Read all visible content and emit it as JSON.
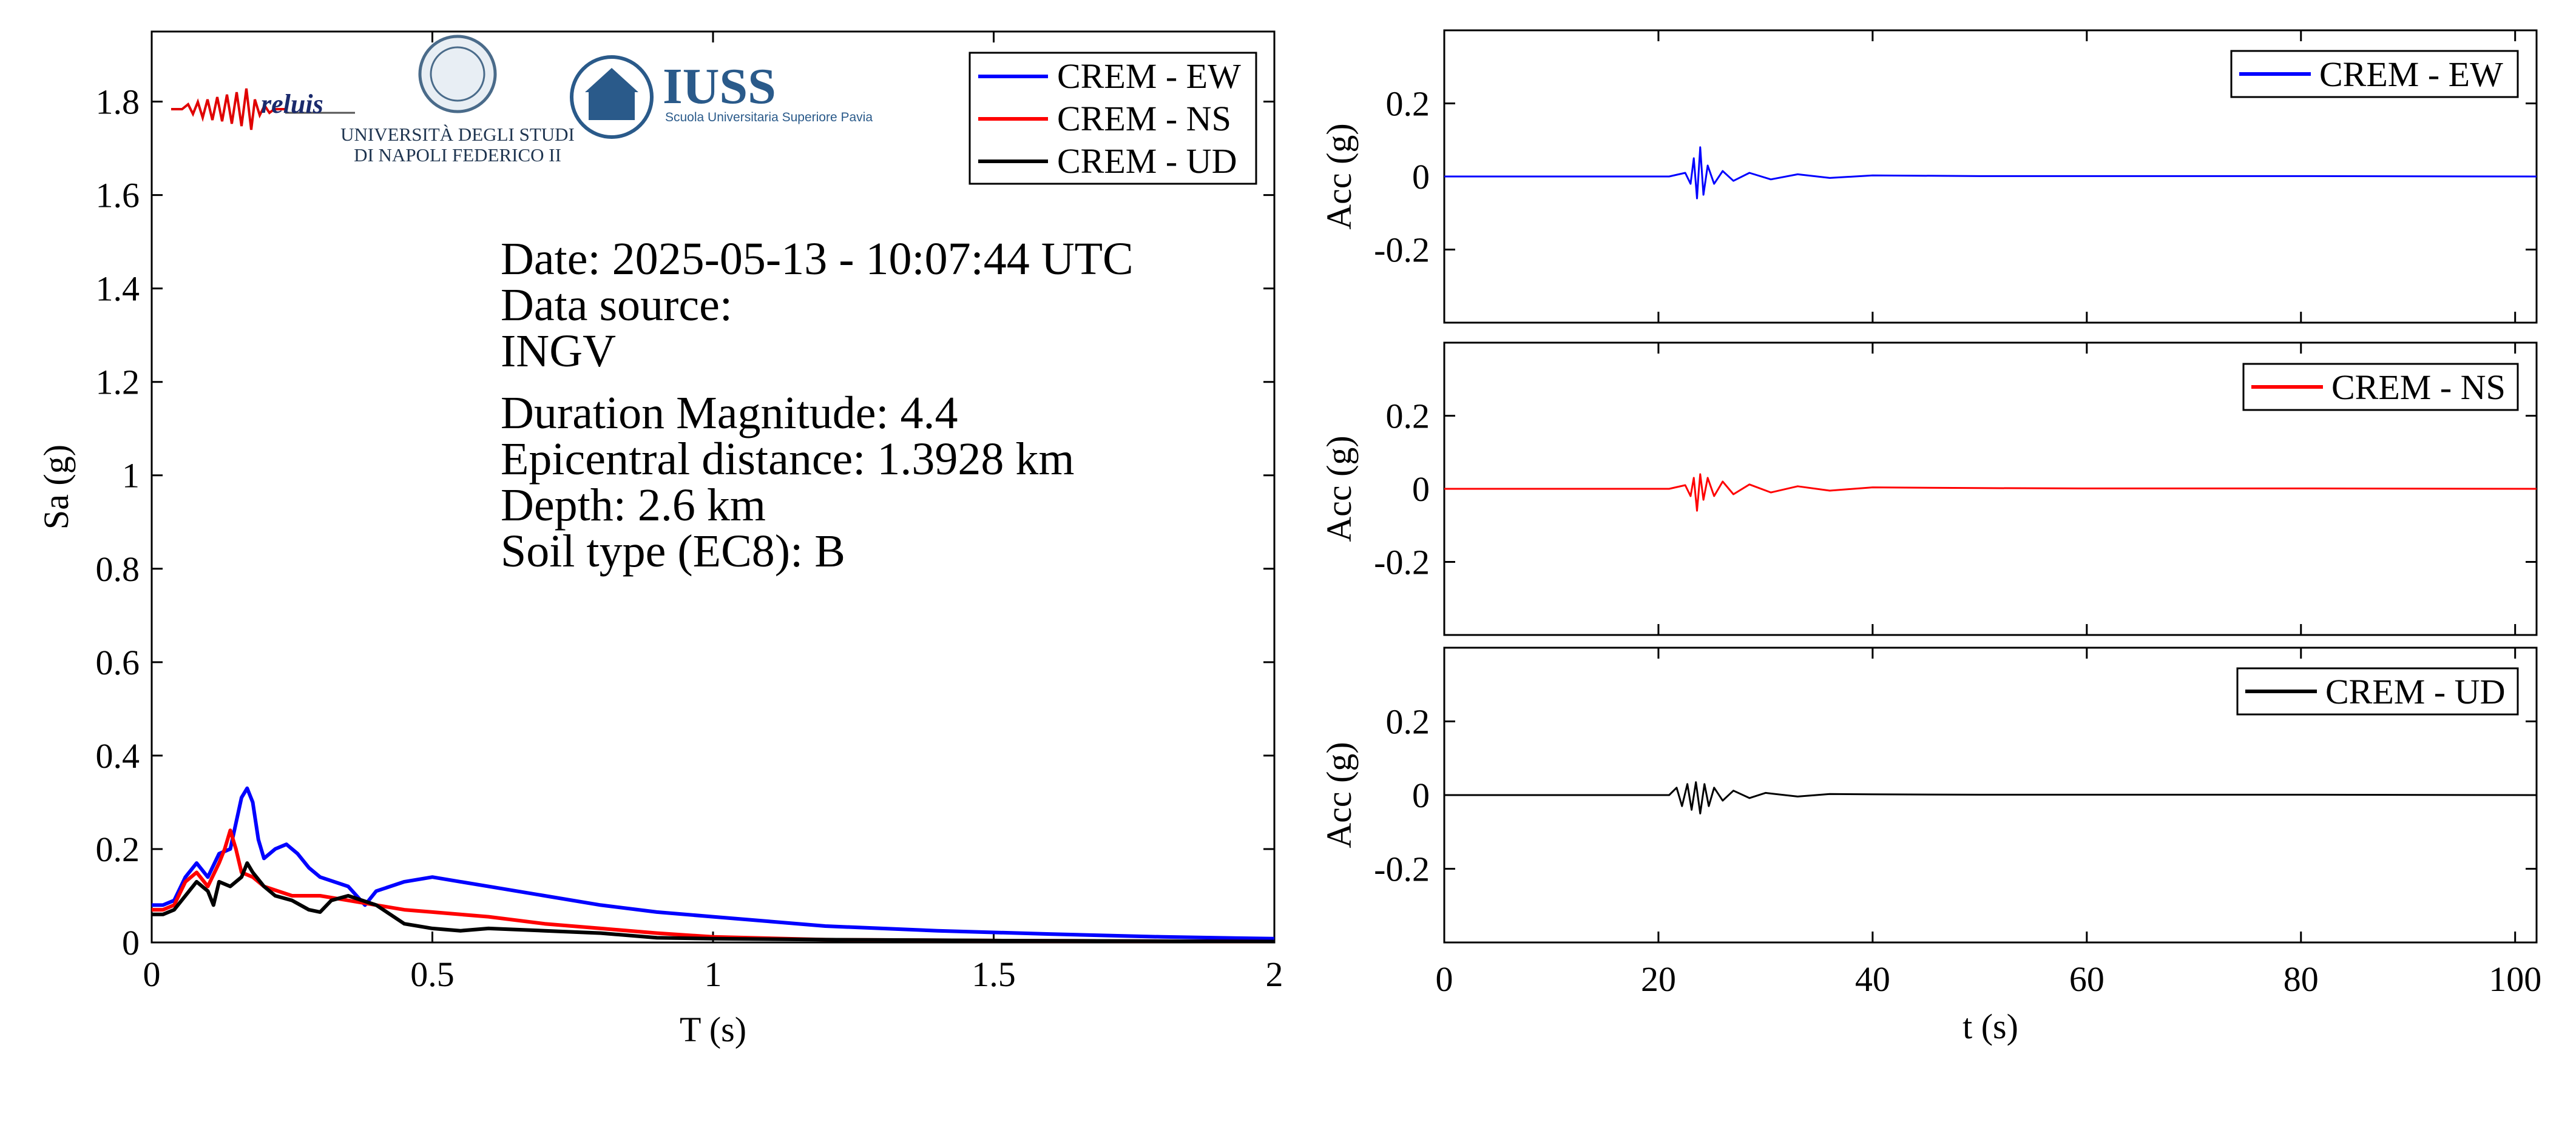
{
  "logos": {
    "reluis": "reluis",
    "unina_line1": "UNIVERSITÀ DEGLI STUDI",
    "unina_line2": "DI NAPOLI FEDERICO II",
    "iuss_title": "IUSS",
    "iuss_subtitle": "Scuola Universitaria Superiore Pavia"
  },
  "info_box": {
    "lines": [
      "Date: 2025-05-13 - 10:07:44 UTC",
      "Data source:",
      "INGV",
      "Duration Magnitude: 4.4",
      "Epicentral distance: 1.3928 km",
      "Depth: 2.6 km",
      "Soil type (EC8): B"
    ]
  },
  "colors": {
    "EW": "#0000ff",
    "NS": "#ff0000",
    "UD": "#000000"
  },
  "chart_data": [
    {
      "type": "line",
      "xlabel": "T (s)",
      "ylabel": "Sa (g)",
      "xlim": [
        0,
        2
      ],
      "ylim": [
        0,
        1.95
      ],
      "xticks": [
        0,
        0.5,
        1,
        1.5,
        2
      ],
      "xtick_labels": [
        "0",
        "0.5",
        "1",
        "1.5",
        "2"
      ],
      "yticks": [
        0,
        0.2,
        0.4,
        0.6,
        0.8,
        1,
        1.2,
        1.4,
        1.6,
        1.8
      ],
      "ytick_labels": [
        "0",
        "0.2",
        "0.4",
        "0.6",
        "0.8",
        "1",
        "1.2",
        "1.4",
        "1.6",
        "1.8"
      ],
      "grid": false,
      "legend_position": "top-right",
      "series": [
        {
          "name": "CREM - EW",
          "x": [
            0,
            0.02,
            0.04,
            0.06,
            0.08,
            0.1,
            0.12,
            0.14,
            0.16,
            0.17,
            0.18,
            0.19,
            0.2,
            0.22,
            0.24,
            0.26,
            0.28,
            0.3,
            0.35,
            0.38,
            0.4,
            0.45,
            0.5,
            0.55,
            0.6,
            0.7,
            0.8,
            0.9,
            1.0,
            1.1,
            1.2,
            1.4,
            1.6,
            1.8,
            2.0
          ],
          "y": [
            0.08,
            0.08,
            0.09,
            0.14,
            0.17,
            0.14,
            0.19,
            0.2,
            0.31,
            0.33,
            0.3,
            0.22,
            0.18,
            0.2,
            0.21,
            0.19,
            0.16,
            0.14,
            0.12,
            0.08,
            0.11,
            0.13,
            0.14,
            0.13,
            0.12,
            0.1,
            0.08,
            0.065,
            0.055,
            0.045,
            0.035,
            0.025,
            0.018,
            0.012,
            0.008
          ]
        },
        {
          "name": "CREM - NS",
          "x": [
            0,
            0.02,
            0.04,
            0.06,
            0.08,
            0.1,
            0.12,
            0.13,
            0.14,
            0.15,
            0.16,
            0.18,
            0.2,
            0.25,
            0.3,
            0.35,
            0.4,
            0.45,
            0.5,
            0.55,
            0.6,
            0.7,
            0.8,
            0.9,
            1.0,
            1.2,
            1.5,
            2.0
          ],
          "y": [
            0.07,
            0.07,
            0.08,
            0.13,
            0.15,
            0.12,
            0.17,
            0.2,
            0.24,
            0.2,
            0.15,
            0.14,
            0.12,
            0.1,
            0.1,
            0.09,
            0.08,
            0.07,
            0.065,
            0.06,
            0.055,
            0.04,
            0.03,
            0.02,
            0.012,
            0.006,
            0.004,
            0.002
          ]
        },
        {
          "name": "CREM - UD",
          "x": [
            0,
            0.02,
            0.04,
            0.06,
            0.08,
            0.1,
            0.11,
            0.12,
            0.14,
            0.16,
            0.17,
            0.18,
            0.2,
            0.22,
            0.25,
            0.28,
            0.3,
            0.32,
            0.35,
            0.4,
            0.45,
            0.5,
            0.55,
            0.6,
            0.7,
            0.8,
            0.9,
            1.0,
            1.2,
            1.5,
            2.0
          ],
          "y": [
            0.06,
            0.06,
            0.07,
            0.1,
            0.13,
            0.11,
            0.08,
            0.13,
            0.12,
            0.14,
            0.17,
            0.15,
            0.12,
            0.1,
            0.09,
            0.07,
            0.065,
            0.09,
            0.1,
            0.08,
            0.04,
            0.03,
            0.025,
            0.03,
            0.025,
            0.02,
            0.01,
            0.008,
            0.006,
            0.004,
            0.002
          ]
        }
      ]
    },
    {
      "type": "line",
      "xlabel": "",
      "ylabel": "Acc (g)",
      "xlim": [
        0,
        102
      ],
      "ylim": [
        -0.4,
        0.4
      ],
      "yticks": [
        -0.2,
        0,
        0.2
      ],
      "ytick_labels": [
        "-0.2",
        "0",
        "0.2"
      ],
      "grid": false,
      "legend_position": "top-right",
      "series": [
        {
          "name": "CREM - EW",
          "x": [
            0,
            21.0,
            22.5,
            23.0,
            23.3,
            23.6,
            23.9,
            24.2,
            24.6,
            25.2,
            26.0,
            27.0,
            28.5,
            30.5,
            33.0,
            36.0,
            40.0,
            50.0,
            60.0,
            80.0,
            102.0
          ],
          "y": [
            0,
            0,
            0.01,
            -0.02,
            0.05,
            -0.06,
            0.08,
            -0.05,
            0.03,
            -0.02,
            0.015,
            -0.012,
            0.01,
            -0.008,
            0.006,
            -0.004,
            0.003,
            0.001,
            0.001,
            0.001,
            0
          ]
        },
        {
          "name": "CREM - NS",
          "x": [
            0,
            21.0,
            22.5,
            23.0,
            23.3,
            23.6,
            23.9,
            24.2,
            24.6,
            25.2,
            26.0,
            27.0,
            28.5,
            30.5,
            33.0,
            36.0,
            40.0,
            50.0,
            60.0,
            80.0,
            102.0
          ],
          "y": [
            0,
            0,
            0.01,
            -0.02,
            0.03,
            -0.06,
            0.04,
            -0.03,
            0.03,
            -0.02,
            0.02,
            -0.015,
            0.012,
            -0.01,
            0.007,
            -0.005,
            0.004,
            0.002,
            0.001,
            0.001,
            0
          ]
        },
        {
          "name": "CREM - UD",
          "x": [
            0,
            21.0,
            21.7,
            22.2,
            22.7,
            23.1,
            23.5,
            23.9,
            24.3,
            24.7,
            25.2,
            26.0,
            27.0,
            28.5,
            30.0,
            33.0,
            36.0,
            40.0,
            50.0,
            60.0,
            80.0,
            102.0
          ],
          "y": [
            0,
            0,
            0.02,
            -0.03,
            0.03,
            -0.04,
            0.035,
            -0.05,
            0.03,
            -0.03,
            0.02,
            -0.015,
            0.012,
            -0.008,
            0.006,
            -0.004,
            0.003,
            0.002,
            0.001,
            0.001,
            0.001,
            0
          ]
        }
      ]
    }
  ],
  "right_xaxis": {
    "label": "t (s)",
    "ticks": [
      0,
      20,
      40,
      60,
      80,
      100
    ],
    "tick_labels": [
      "0",
      "20",
      "40",
      "60",
      "80",
      "100"
    ]
  }
}
